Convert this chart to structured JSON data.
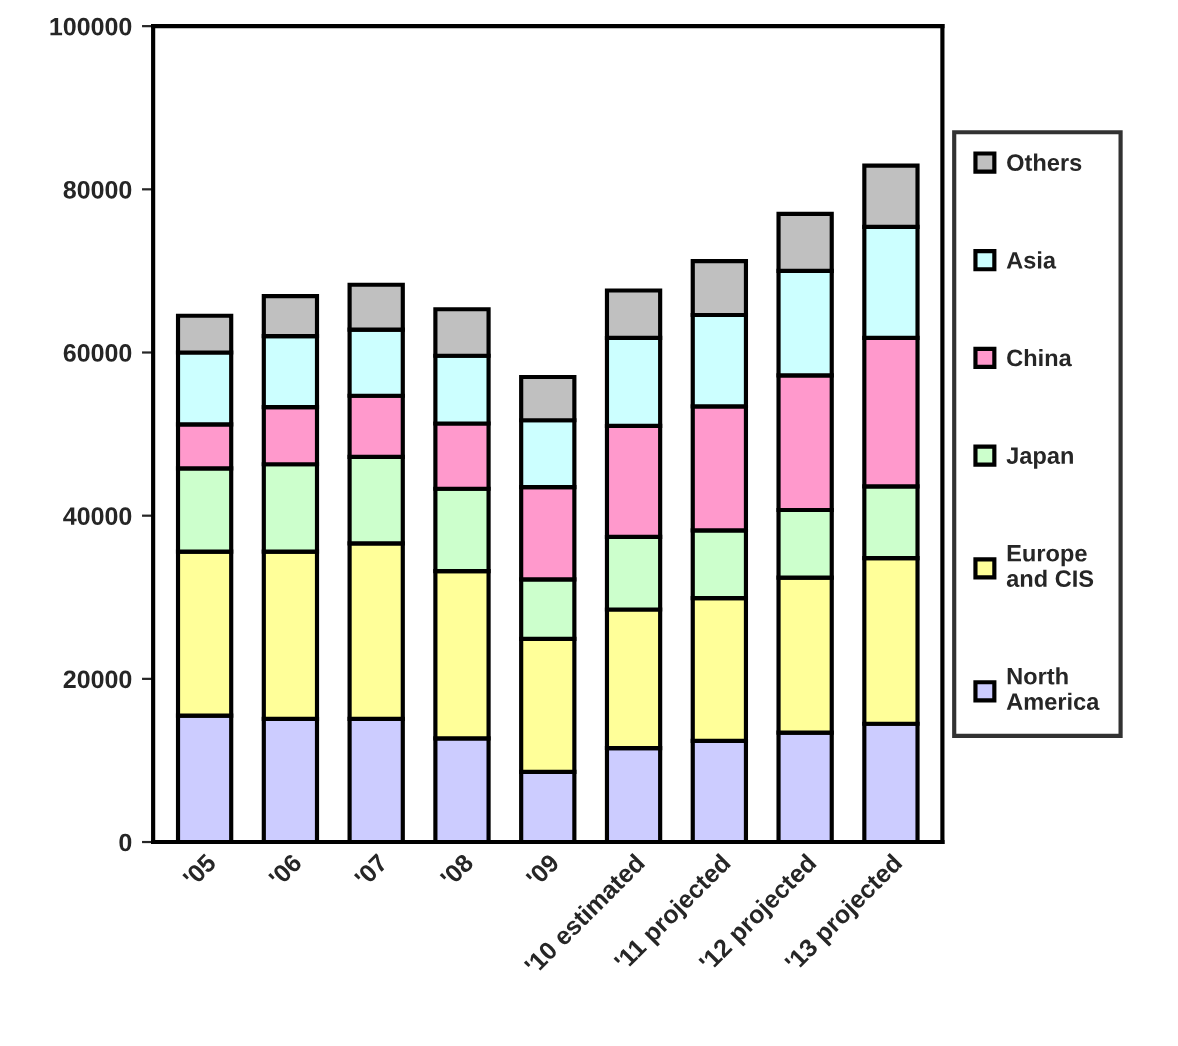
{
  "chart_data": {
    "type": "bar",
    "stacked": true,
    "categories": [
      "'05",
      "'06",
      "'07",
      "'08",
      "'09",
      "'10 estimated",
      "'11 projected",
      "'12 projected",
      "'13 projected"
    ],
    "series": [
      {
        "name": "North America",
        "color": "#ccccff",
        "values": [
          15500,
          15100,
          15100,
          12700,
          8600,
          11500,
          12400,
          13400,
          14500
        ]
      },
      {
        "name": "Europe and CIS",
        "color": "#ffff99",
        "values": [
          20100,
          20500,
          21500,
          20500,
          16300,
          17000,
          17500,
          19000,
          20300
        ]
      },
      {
        "name": "Japan",
        "color": "#ccffcc",
        "values": [
          10200,
          10700,
          10600,
          10100,
          7300,
          8900,
          8300,
          8300,
          8800
        ]
      },
      {
        "name": "China",
        "color": "#ff99cc",
        "values": [
          5400,
          7000,
          7500,
          8000,
          11300,
          13600,
          15200,
          16500,
          18200
        ]
      },
      {
        "name": "Asia",
        "color": "#ccffff",
        "values": [
          8800,
          8700,
          8100,
          8300,
          8200,
          10800,
          11200,
          12800,
          13600
        ]
      },
      {
        "name": "Others",
        "color": "#c0c0c0",
        "values": [
          4500,
          4900,
          5500,
          5700,
          5300,
          5800,
          6600,
          7000,
          7500
        ]
      }
    ],
    "ylim": [
      0,
      100000
    ],
    "yticks": [
      0,
      20000,
      40000,
      60000,
      80000,
      100000
    ],
    "grid": false,
    "legend": "right"
  }
}
